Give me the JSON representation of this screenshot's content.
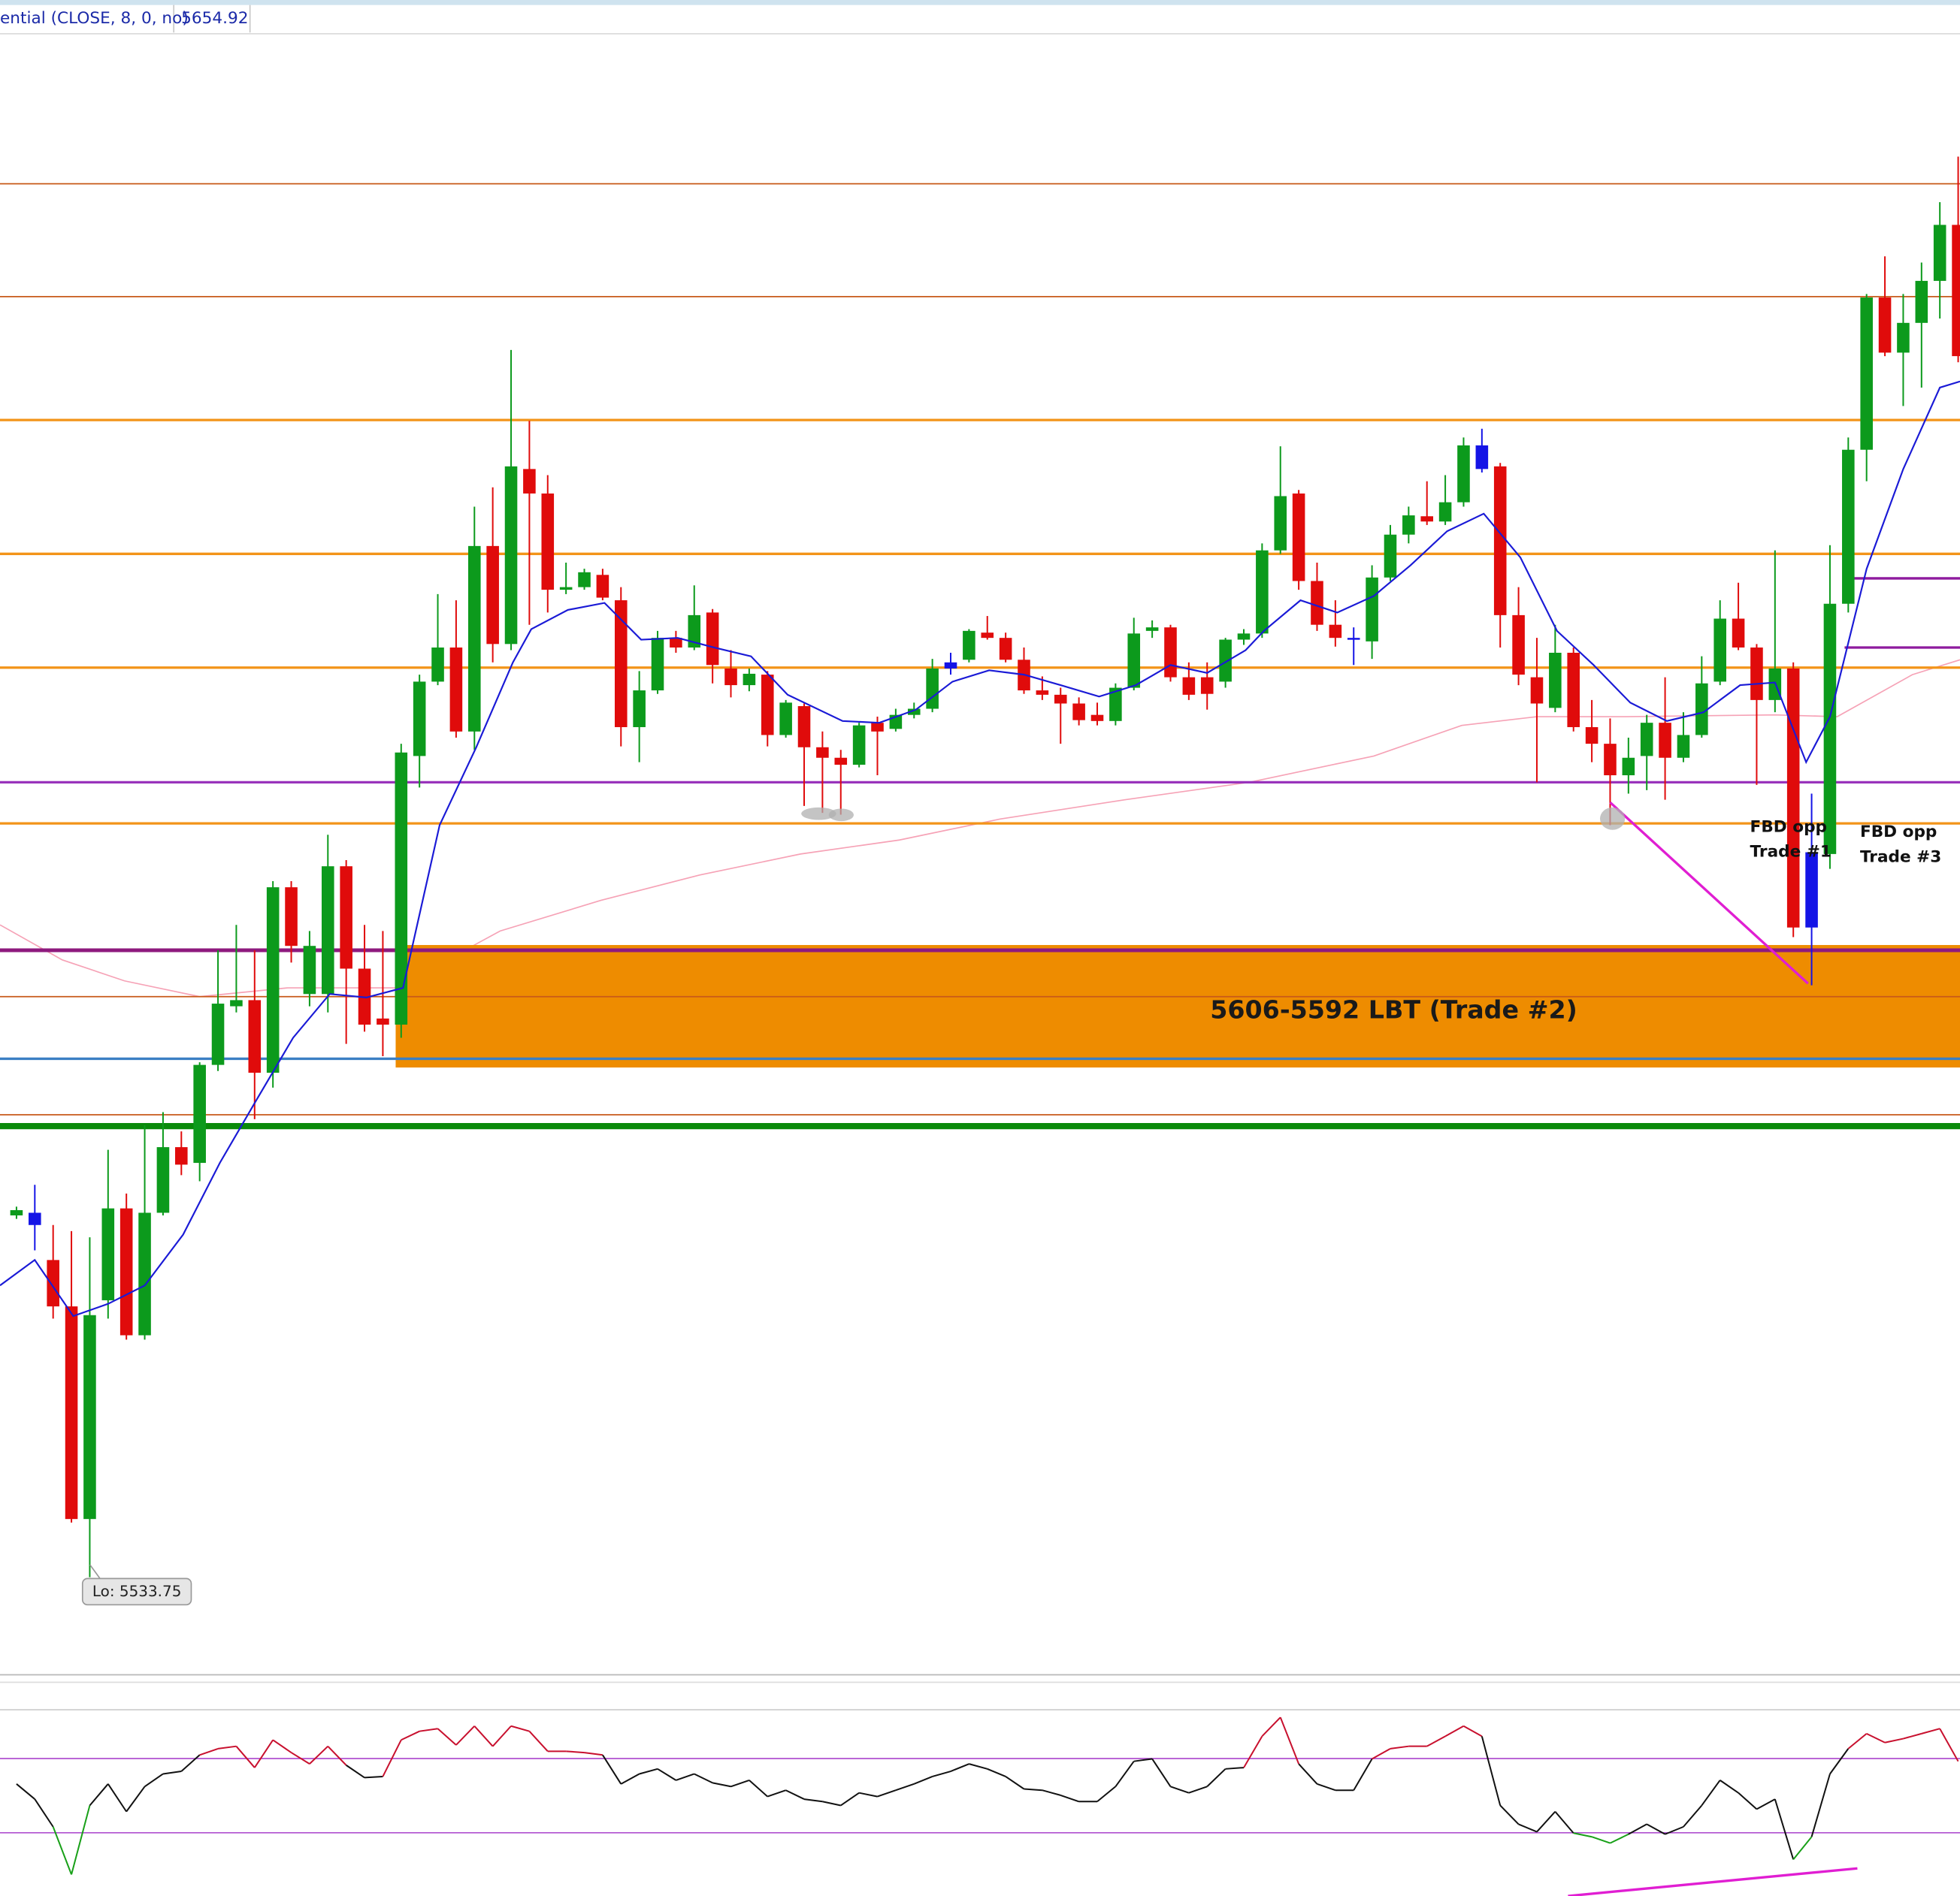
{
  "header": {
    "indicator": "ential (CLOSE, 8, 0, no)",
    "value": "5654.92"
  },
  "chart_data": [
    {
      "type": "candlestick",
      "xlim": [
        -0.9,
        106.1
      ],
      "ylim": [
        5522.6,
        5710
      ],
      "open": [
        5575.1,
        5574.0,
        5570.0,
        5564.7,
        5540.4,
        5565.4,
        5575.9,
        5561.4,
        5575.4,
        5582.9,
        5581.1,
        5592.3,
        5599.0,
        5599.7,
        5591.4,
        5612.6,
        5600.4,
        5600.4,
        5615.0,
        5603.3,
        5597.6,
        5596.9,
        5627.6,
        5636.1,
        5640.0,
        5630.4,
        5651.6,
        5640.4,
        5660.4,
        5657.6,
        5646.6,
        5646.9,
        5648.3,
        5645.4,
        5630.9,
        5635.1,
        5641.1,
        5640.0,
        5644.0,
        5637.6,
        5635.7,
        5636.9,
        5630.0,
        5633.3,
        5628.6,
        5627.4,
        5626.6,
        5631.4,
        5630.7,
        5632.3,
        5633.0,
        5637.6,
        5638.6,
        5641.7,
        5641.1,
        5638.6,
        5635.1,
        5634.6,
        5633.6,
        5632.3,
        5631.6,
        5635.4,
        5641.9,
        5642.3,
        5636.6,
        5636.6,
        5636.1,
        5640.9,
        5641.6,
        5651.1,
        5657.6,
        5647.6,
        5642.6,
        5641.1,
        5640.7,
        5648.0,
        5652.9,
        5655.0,
        5654.4,
        5656.6,
        5660.4,
        5660.7,
        5643.7,
        5636.6,
        5633.1,
        5639.4,
        5630.9,
        5629.0,
        5625.4,
        5627.6,
        5631.4,
        5627.4,
        5630.0,
        5636.1,
        5643.3,
        5640.0,
        5634.0,
        5637.6,
        5608.0,
        5616.4,
        5645.0,
        5662.6,
        5680.0,
        5673.7,
        5677.1,
        5681.9,
        5688.3
      ],
      "high": [
        5576.1,
        5578.6,
        5574.0,
        5573.3,
        5572.6,
        5582.6,
        5577.6,
        5585.4,
        5586.9,
        5584.7,
        5592.6,
        5605.4,
        5608.3,
        5605.4,
        5613.3,
        5613.3,
        5607.6,
        5618.6,
        5615.7,
        5608.3,
        5607.6,
        5629.0,
        5636.9,
        5646.1,
        5645.4,
        5656.1,
        5658.3,
        5674.0,
        5665.9,
        5659.7,
        5649.7,
        5649.0,
        5649.0,
        5646.9,
        5637.3,
        5641.9,
        5641.9,
        5647.1,
        5644.4,
        5639.7,
        5637.6,
        5637.3,
        5634.0,
        5633.6,
        5630.4,
        5628.3,
        5631.4,
        5632.1,
        5633.0,
        5633.7,
        5638.7,
        5639.4,
        5642.1,
        5643.6,
        5641.7,
        5640.0,
        5636.7,
        5635.4,
        5634.3,
        5633.7,
        5635.9,
        5643.4,
        5643.1,
        5642.6,
        5638.3,
        5638.3,
        5641.1,
        5642.1,
        5651.9,
        5663.0,
        5658.0,
        5649.7,
        5645.4,
        5642.3,
        5649.4,
        5654.0,
        5656.1,
        5659.0,
        5659.7,
        5664.0,
        5665.0,
        5661.1,
        5646.9,
        5641.1,
        5642.6,
        5640.0,
        5634.0,
        5631.9,
        5629.7,
        5632.3,
        5636.6,
        5632.6,
        5639.0,
        5645.4,
        5647.4,
        5640.4,
        5651.1,
        5638.3,
        5623.3,
        5651.7,
        5664.0,
        5680.4,
        5684.7,
        5680.4,
        5684.0,
        5690.9,
        5696.1
      ],
      "low": [
        5574.7,
        5571.1,
        5563.3,
        5540.0,
        5533.75,
        5563.3,
        5560.9,
        5560.9,
        5575.1,
        5579.7,
        5579.0,
        5591.6,
        5598.3,
        5586.1,
        5589.7,
        5604.0,
        5599.0,
        5598.3,
        5594.7,
        5596.1,
        5593.3,
        5595.4,
        5624.0,
        5635.7,
        5629.7,
        5628.3,
        5638.3,
        5639.7,
        5642.6,
        5644.0,
        5646.1,
        5646.6,
        5645.4,
        5628.7,
        5626.9,
        5634.7,
        5639.4,
        5639.7,
        5635.9,
        5634.3,
        5635.0,
        5628.7,
        5629.7,
        5621.9,
        5621.1,
        5620.9,
        5626.3,
        5625.4,
        5630.4,
        5631.9,
        5632.6,
        5636.9,
        5638.3,
        5640.9,
        5638.3,
        5634.7,
        5634.0,
        5629.0,
        5631.1,
        5631.1,
        5631.1,
        5635.1,
        5641.1,
        5636.1,
        5634.0,
        5632.9,
        5635.4,
        5640.3,
        5641.1,
        5650.7,
        5646.6,
        5641.9,
        5640.1,
        5638.0,
        5638.7,
        5647.6,
        5651.9,
        5654.0,
        5654.0,
        5656.1,
        5660.0,
        5640.0,
        5635.7,
        5624.6,
        5632.6,
        5630.4,
        5626.9,
        5619.7,
        5623.3,
        5623.7,
        5622.6,
        5626.9,
        5629.7,
        5635.7,
        5639.7,
        5624.3,
        5632.6,
        5606.9,
        5601.4,
        5614.7,
        5644.0,
        5659.0,
        5673.3,
        5667.6,
        5669.7,
        5677.6,
        5672.6
      ],
      "close": [
        5575.7,
        5575.4,
        5564.7,
        5540.4,
        5563.7,
        5575.9,
        5561.4,
        5575.4,
        5582.9,
        5580.9,
        5592.3,
        5599.3,
        5599.7,
        5591.4,
        5612.6,
        5605.9,
        5605.9,
        5615.0,
        5603.3,
        5596.9,
        5596.9,
        5628.0,
        5636.1,
        5640.0,
        5630.4,
        5651.6,
        5640.4,
        5660.7,
        5657.6,
        5646.6,
        5646.9,
        5648.6,
        5645.7,
        5630.9,
        5635.1,
        5641.1,
        5640.0,
        5643.7,
        5638.0,
        5635.7,
        5637.0,
        5630.0,
        5633.7,
        5628.6,
        5627.4,
        5626.6,
        5631.1,
        5630.4,
        5632.3,
        5633.0,
        5637.6,
        5638.3,
        5641.9,
        5641.1,
        5638.6,
        5635.1,
        5634.6,
        5633.6,
        5631.7,
        5631.6,
        5635.4,
        5641.6,
        5642.3,
        5636.6,
        5634.6,
        5634.7,
        5640.9,
        5641.6,
        5651.1,
        5657.3,
        5647.6,
        5642.6,
        5641.1,
        5641.1,
        5648.0,
        5652.9,
        5655.1,
        5654.4,
        5656.6,
        5663.1,
        5663.1,
        5643.7,
        5636.9,
        5633.6,
        5639.4,
        5630.9,
        5629.0,
        5625.4,
        5627.4,
        5631.4,
        5627.4,
        5630.0,
        5635.9,
        5643.3,
        5640.0,
        5634.0,
        5637.6,
        5608.0,
        5616.6,
        5645.0,
        5662.6,
        5680.0,
        5673.7,
        5677.1,
        5681.9,
        5688.3,
        5673.3
      ],
      "up_color": "#0c9a1c",
      "down_color": "#e00b0b",
      "highlight_color": "#1414e6",
      "highlight_bars": [
        1,
        51,
        73,
        80,
        98
      ],
      "overlays": [
        {
          "color": "#f6a2b6",
          "width": 1,
          "x": [
            -0.9,
            2.5,
            5.9,
            10.0,
            14.8,
            20.7,
            26.4,
            31.9,
            37.3,
            42.8,
            48.2,
            53.7,
            60.5,
            67.3,
            74.1,
            78.9,
            83.0,
            87.8,
            96.0,
            99.4,
            103.5,
            106.1
          ],
          "values": [
            5608.3,
            5604.3,
            5601.9,
            5600.1,
            5601.1,
            5601.1,
            5607.6,
            5611.1,
            5614.0,
            5616.4,
            5618.0,
            5620.4,
            5622.6,
            5624.6,
            5627.6,
            5631.1,
            5632.1,
            5632.1,
            5632.3,
            5632.1,
            5636.9,
            5638.6
          ]
        },
        {
          "color": "#1a1ad6",
          "width": 1.3,
          "x": [
            -0.9,
            1.0,
            3.1,
            5.0,
            7.0,
            9.1,
            11.1,
            13.1,
            15.1,
            17.1,
            19.1,
            21.1,
            23.1,
            25.1,
            27.1,
            28.1,
            30.1,
            32.1,
            34.1,
            36.1,
            38.1,
            40.1,
            42.1,
            45.1,
            47.1,
            49.1,
            51.1,
            53.1,
            55.0,
            57.0,
            59.1,
            61.1,
            63.0,
            65.0,
            67.1,
            68.1,
            70.1,
            72.1,
            74.1,
            76.1,
            78.1,
            80.1,
            82.1,
            84.1,
            86.1,
            88.1,
            90.1,
            92.1,
            94.1,
            96.0,
            97.7,
            99.0,
            101.0,
            103.0,
            105.0,
            106.1
          ],
          "values": [
            5567.1,
            5570.0,
            5563.6,
            5565.0,
            5567.1,
            5572.9,
            5581.1,
            5588.3,
            5595.4,
            5600.4,
            5600.0,
            5601.1,
            5619.7,
            5628.6,
            5638.3,
            5642.1,
            5644.3,
            5645.1,
            5640.9,
            5641.1,
            5640.0,
            5639.0,
            5634.6,
            5631.6,
            5631.4,
            5632.9,
            5636.1,
            5637.4,
            5636.9,
            5635.7,
            5634.4,
            5635.7,
            5638.0,
            5637.1,
            5639.7,
            5641.9,
            5645.4,
            5644.0,
            5645.9,
            5649.4,
            5653.3,
            5655.3,
            5650.3,
            5641.9,
            5638.0,
            5633.7,
            5631.6,
            5632.6,
            5635.7,
            5636.0,
            5626.9,
            5632.1,
            5649.0,
            5660.4,
            5669.7,
            5670.4
          ]
        },
        {
          "color": "#e01ed2",
          "width": 2,
          "x": [
            87.0,
            97.8
          ],
          "values": [
            5622.3,
            5601.6
          ]
        }
      ],
      "levels": [
        {
          "value": 5693.0,
          "color": "#c85a1a",
          "width": 1
        },
        {
          "value": 5680.1,
          "color": "#c85a1a",
          "width": 1
        },
        {
          "value": 5666.0,
          "color": "#f39419",
          "width": 2
        },
        {
          "value": 5650.7,
          "color": "#f39419",
          "width": 2
        },
        {
          "value": 5637.7,
          "color": "#f39419",
          "width": 2
        },
        {
          "value": 5624.6,
          "color": "#9933bb",
          "width": 2
        },
        {
          "value": 5619.9,
          "color": "#f39419",
          "width": 2
        },
        {
          "value": 5605.4,
          "color": "#8e1a7e",
          "width": 3
        },
        {
          "value": 5600.1,
          "color": "#c85a1a",
          "width": 1
        },
        {
          "value": 5593.0,
          "color": "#3b7fc4",
          "width": 2
        },
        {
          "value": 5586.6,
          "color": "#c85a1a",
          "width": 1
        },
        {
          "value": 5585.3,
          "color": "#0a8a0a",
          "width": 5
        },
        {
          "value": 5647.9,
          "color": "#8e1a9e",
          "width": 2,
          "start": 99.8
        },
        {
          "value": 5640.0,
          "color": "#8e1a9e",
          "width": 2,
          "start": 99.8
        }
      ],
      "zones": [
        {
          "from": 5606,
          "to": 5592,
          "start": 20.7,
          "color": "#ee8c00",
          "label": "5606-5592 LBT (Trade #2)"
        }
      ],
      "annotations": [
        {
          "lines": [
            "FBD opp",
            "Trade #1"
          ]
        },
        {
          "lines": [
            "FBD opp",
            "Trade #3"
          ]
        }
      ],
      "low_label": "Lo: 5533.75"
    },
    {
      "type": "oscillator",
      "xlim": [
        -0.9,
        106.1
      ],
      "ylim": [
        -4.1,
        95.6
      ],
      "color": "#111111",
      "above_color": "#c8102e",
      "below_color": "#18a018",
      "values": [
        56.3,
        48.1,
        33.2,
        7.5,
        44.7,
        56.3,
        41.4,
        54.9,
        61.7,
        63.1,
        71.9,
        75.3,
        76.6,
        65.1,
        80.0,
        73.2,
        67.1,
        76.6,
        66.4,
        59.7,
        60.3,
        80.0,
        84.7,
        86.1,
        77.3,
        87.5,
        76.6,
        87.5,
        84.7,
        73.9,
        73.9,
        73.2,
        71.9,
        56.3,
        61.7,
        64.4,
        58.3,
        61.7,
        56.9,
        54.9,
        58.3,
        49.5,
        52.9,
        48.1,
        46.8,
        44.7,
        51.5,
        49.5,
        52.9,
        56.3,
        60.3,
        63.1,
        67.1,
        64.4,
        60.3,
        53.6,
        52.9,
        50.2,
        46.8,
        46.8,
        54.9,
        68.5,
        69.8,
        54.9,
        51.5,
        54.9,
        64.4,
        65.1,
        82.0,
        92.2,
        67.1,
        56.3,
        52.9,
        52.9,
        69.8,
        75.3,
        76.6,
        76.6,
        82.0,
        87.5,
        82.0,
        44.7,
        34.6,
        30.5,
        41.4,
        29.8,
        27.8,
        24.4,
        29.2,
        34.6,
        29.2,
        33.2,
        44.7,
        58.3,
        51.5,
        42.7,
        48.1,
        15.6,
        27.8,
        61.7,
        75.3,
        83.4,
        78.6,
        80.7,
        83.4,
        86.1,
        68.5
      ],
      "levels": [
        {
          "value": 70,
          "color": "#b050d0"
        },
        {
          "value": 30,
          "color": "#b050d0"
        }
      ],
      "overlays": [
        {
          "color": "#e01ed2",
          "width": 2,
          "x": [
            84.7,
            100.5
          ],
          "values": [
            -4.1,
            10.8
          ]
        }
      ]
    }
  ]
}
